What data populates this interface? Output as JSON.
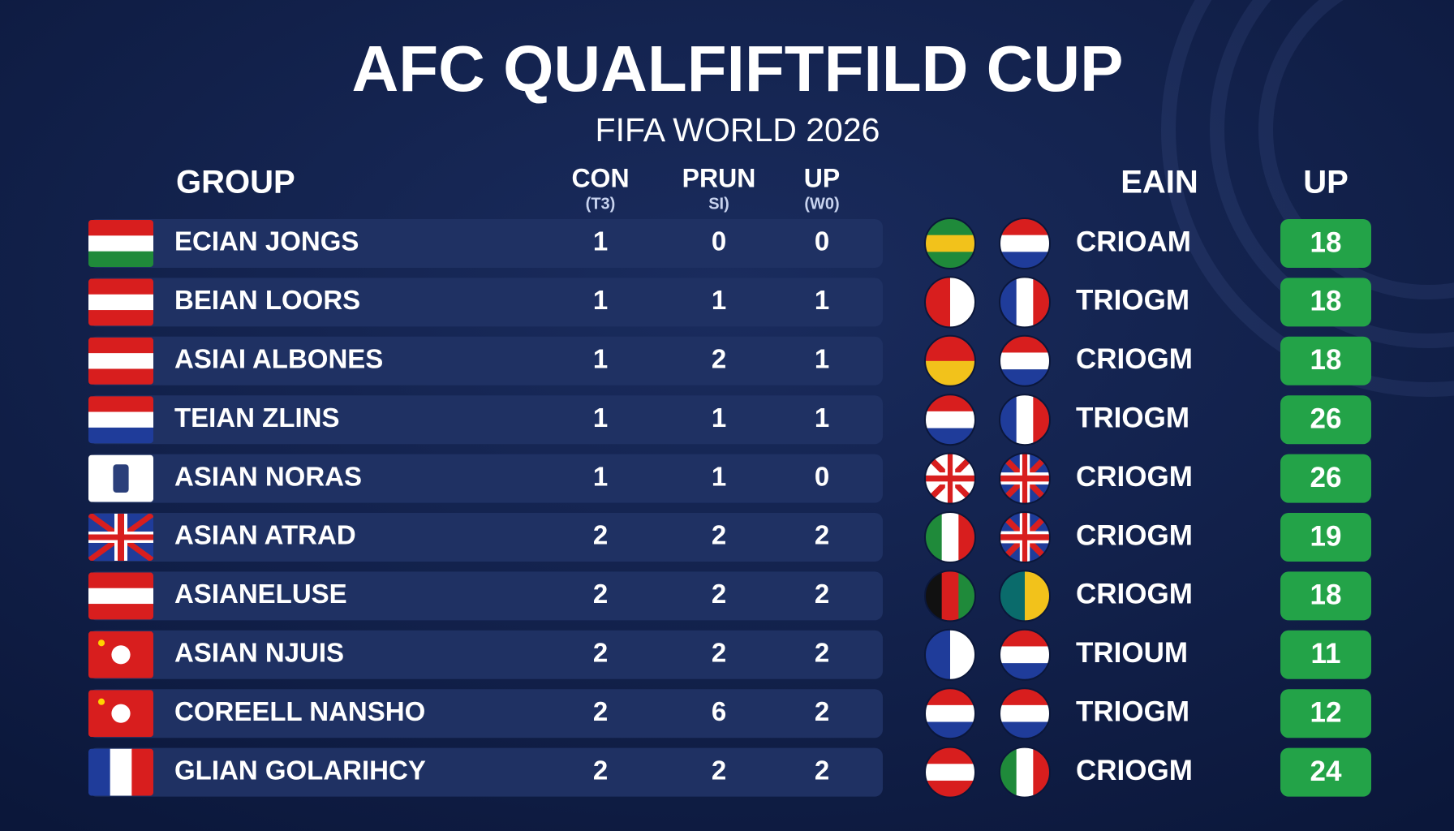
{
  "header": {
    "title": "AFC QUALFIFTFILD CUP",
    "subtitle": "FIFA WORLD 2026"
  },
  "table": {
    "columns": [
      {
        "label": "GROUP"
      },
      {
        "label": "CON",
        "sublabel": "(T3)"
      },
      {
        "label": "PRUN",
        "sublabel": "SI)"
      },
      {
        "label": "UP",
        "sublabel": "(W0)"
      },
      {
        "label": "EAIN"
      },
      {
        "label": "UP"
      }
    ],
    "rows": [
      [
        "ECIAN JONGS",
        "1",
        "0",
        "0",
        "CRIOAM",
        "18"
      ],
      [
        "BEIAN LOORS",
        "1",
        "1",
        "1",
        "TRIOGM",
        "18"
      ],
      [
        "ASIAI ALBONES",
        "1",
        "2",
        "1",
        "CRIOGM",
        "18"
      ],
      [
        "TEIAN ZLINS",
        "1",
        "1",
        "1",
        "TRIOGM",
        "26"
      ],
      [
        "ASIAN NORAS",
        "1",
        "1",
        "0",
        "CRIOGM",
        "26"
      ],
      [
        "ASIAN ATRAD",
        "2",
        "2",
        "2",
        "CRIOGM",
        "19"
      ],
      [
        "ASIANELUSE",
        "2",
        "2",
        "2",
        "CRIOGM",
        "18"
      ],
      [
        "ASIAN NJUIS",
        "2",
        "2",
        "2",
        "TRIOUM",
        "11"
      ],
      [
        "COREELL NANSHO",
        "2",
        "6",
        "2",
        "TRIOGM",
        "12"
      ],
      [
        "GLIAN GOLARIHCY",
        "2",
        "2",
        "2",
        "CRIOGM",
        "24"
      ]
    ]
  }
}
